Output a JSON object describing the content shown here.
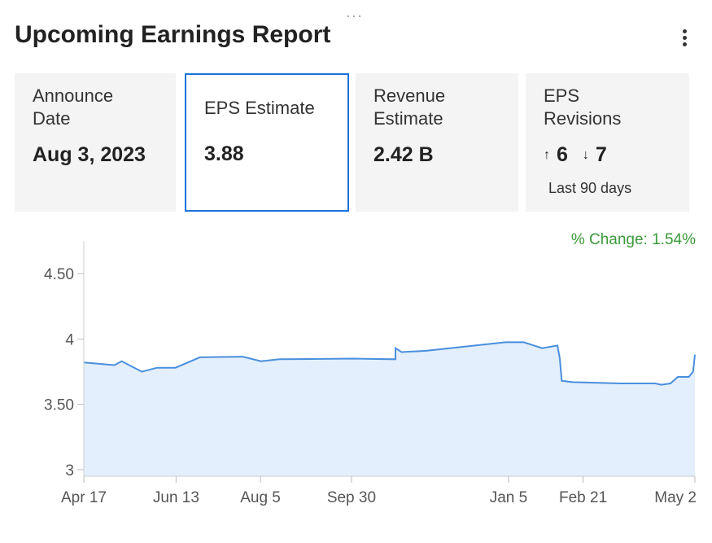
{
  "header": {
    "title": "Upcoming Earnings Report",
    "menu_icon": "more-vertical-icon",
    "drag_icon": "drag-handle-icon"
  },
  "cards": {
    "announce": {
      "label": "Announce\nDate",
      "value": "Aug 3, 2023"
    },
    "eps": {
      "label": "EPS Estimate",
      "value": "3.88"
    },
    "revenue": {
      "label": "Revenue\nEstimate",
      "value": "2.42 B"
    },
    "revisions": {
      "label": "EPS\nRevisions",
      "up_icon": "arrow-up-icon",
      "up": "6",
      "down_icon": "arrow-down-icon",
      "down": "7",
      "period": "Last 90 days"
    }
  },
  "chart_data": {
    "type": "area",
    "annotation": "% Change: 1.54%",
    "y_ticks": [
      "4.50",
      "4",
      "3.50",
      "3"
    ],
    "x_ticks": [
      "Apr 17",
      "Jun 13",
      "Aug 5",
      "Sep 30",
      "Jan 5",
      "Feb 21",
      "May 2"
    ],
    "ylim": [
      2.95,
      4.75
    ],
    "grid": false,
    "line_color": "#4a8fdd",
    "fill_color": "#e3effc",
    "points": [
      [
        0,
        3.82
      ],
      [
        0.05,
        3.8
      ],
      [
        0.062,
        3.83
      ],
      [
        0.095,
        3.75
      ],
      [
        0.12,
        3.78
      ],
      [
        0.15,
        3.78
      ],
      [
        0.19,
        3.86
      ],
      [
        0.26,
        3.865
      ],
      [
        0.29,
        3.83
      ],
      [
        0.32,
        3.845
      ],
      [
        0.44,
        3.85
      ],
      [
        0.51,
        3.845
      ],
      [
        0.51,
        3.93
      ],
      [
        0.52,
        3.9
      ],
      [
        0.56,
        3.91
      ],
      [
        0.69,
        3.975
      ],
      [
        0.72,
        3.975
      ],
      [
        0.75,
        3.93
      ],
      [
        0.775,
        3.95
      ],
      [
        0.779,
        3.85
      ],
      [
        0.782,
        3.68
      ],
      [
        0.8,
        3.67
      ],
      [
        0.88,
        3.66
      ],
      [
        0.935,
        3.66
      ],
      [
        0.945,
        3.65
      ],
      [
        0.96,
        3.66
      ],
      [
        0.972,
        3.71
      ],
      [
        0.99,
        3.71
      ],
      [
        0.997,
        3.75
      ],
      [
        1.0,
        3.88
      ]
    ]
  }
}
